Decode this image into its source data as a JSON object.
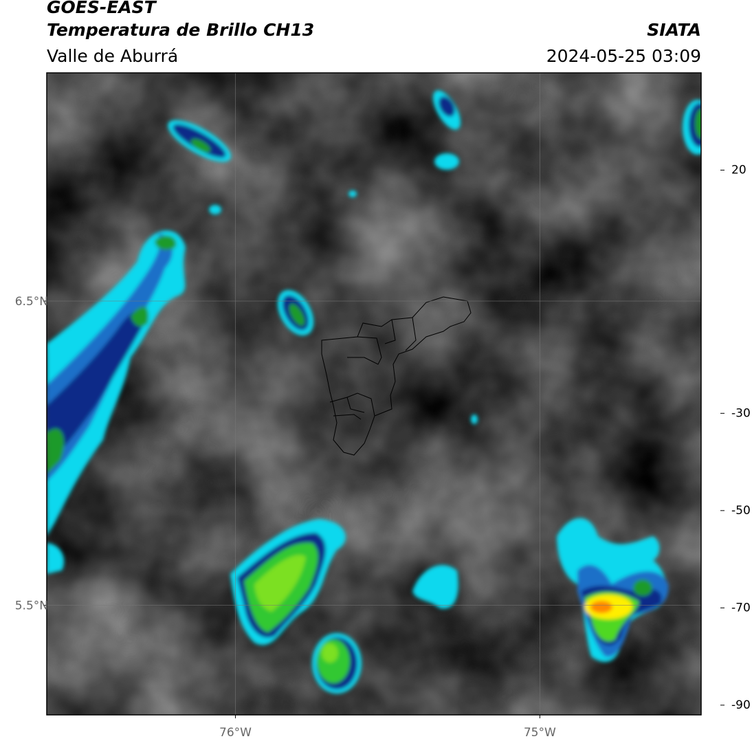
{
  "header": {
    "satellite": "GOES-EAST",
    "product": "Temperatura de Brillo CH13",
    "region": "Valle de Aburrá",
    "agency": "SIATA",
    "datetime": "2024-05-25 03:09"
  },
  "map": {
    "xlim": [
      -76.62,
      -74.47
    ],
    "ylim": [
      5.14,
      7.25
    ],
    "xticks": [
      {
        "value": -76,
        "label": "76°W"
      },
      {
        "value": -75,
        "label": "75°W"
      }
    ],
    "yticks": [
      {
        "value": 6.5,
        "label": "6.5°N"
      },
      {
        "value": 5.5,
        "label": "5.5°N"
      }
    ],
    "grid": true
  },
  "colorbar": {
    "lim": [
      -92,
      40
    ],
    "ticks": [
      20,
      -30,
      -50,
      -70,
      -90
    ]
  }
}
